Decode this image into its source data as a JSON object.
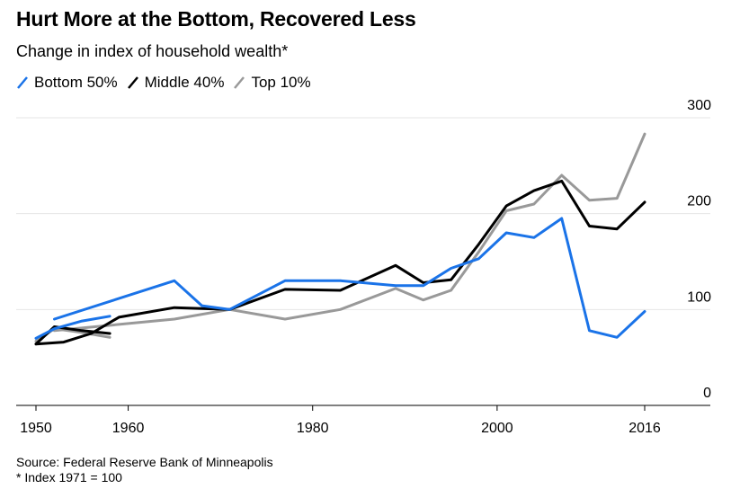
{
  "chart_data": {
    "type": "line",
    "title": "Hurt More at the Bottom, Recovered Less",
    "subtitle": "Change in index of household wealth*",
    "xlabel": "",
    "ylabel": "",
    "xlim": [
      1949,
      2021
    ],
    "ylim": [
      0,
      300
    ],
    "x_ticks": [
      1950,
      1960,
      1980,
      2000,
      2016
    ],
    "y_ticks": [
      0,
      100,
      200,
      300
    ],
    "grid": true,
    "legend_position": "top-left",
    "series": [
      {
        "name": "Bottom 50%",
        "color": "#1a73e8",
        "segments": [
          [
            [
              1950,
              70
            ],
            [
              1952,
              80
            ],
            [
              1955,
              88
            ],
            [
              1958,
              93
            ]
          ],
          [
            [
              1952,
              90
            ],
            [
              1965,
              130
            ],
            [
              1968,
              104
            ],
            [
              1971,
              100
            ],
            [
              1977,
              130
            ],
            [
              1983,
              130
            ],
            [
              1989,
              125
            ],
            [
              1992,
              125
            ],
            [
              1995,
              143
            ],
            [
              1998,
              153
            ],
            [
              2001,
              180
            ],
            [
              2004,
              175
            ],
            [
              2007,
              195
            ],
            [
              2010,
              78
            ],
            [
              2013,
              71
            ],
            [
              2016,
              98
            ]
          ]
        ]
      },
      {
        "name": "Middle 40%",
        "color": "#000000",
        "segments": [
          [
            [
              1950,
              64
            ],
            [
              1952,
              82
            ],
            [
              1955,
              78
            ],
            [
              1958,
              75
            ]
          ],
          [
            [
              1950,
              64
            ],
            [
              1953,
              66
            ],
            [
              1956,
              75
            ],
            [
              1959,
              92
            ],
            [
              1965,
              102
            ],
            [
              1971,
              100
            ],
            [
              1977,
              121
            ],
            [
              1983,
              120
            ],
            [
              1989,
              146
            ],
            [
              1992,
              128
            ],
            [
              1995,
              131
            ],
            [
              1998,
              168
            ],
            [
              2001,
              208
            ],
            [
              2004,
              224
            ],
            [
              2007,
              234
            ],
            [
              2010,
              187
            ],
            [
              2013,
              184
            ],
            [
              2016,
              212
            ]
          ]
        ]
      },
      {
        "name": "Top 10%",
        "color": "#999999",
        "segments": [
          [
            [
              1950,
              67
            ],
            [
              1952,
              80
            ],
            [
              1955,
              76
            ],
            [
              1958,
              71
            ]
          ],
          [
            [
              1952,
              78
            ],
            [
              1965,
              90
            ],
            [
              1971,
              100
            ],
            [
              1977,
              90
            ],
            [
              1983,
              100
            ],
            [
              1989,
              122
            ],
            [
              1992,
              110
            ],
            [
              1995,
              120
            ],
            [
              1998,
              160
            ],
            [
              2001,
              203
            ],
            [
              2004,
              210
            ],
            [
              2007,
              240
            ],
            [
              2010,
              214
            ],
            [
              2013,
              216
            ],
            [
              2016,
              283
            ]
          ]
        ]
      }
    ]
  },
  "footer": {
    "source": "Source: Federal Reserve Bank of Minneapolis",
    "note": "* Index 1971 = 100"
  }
}
